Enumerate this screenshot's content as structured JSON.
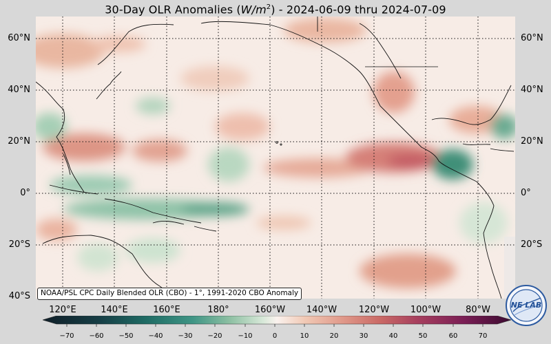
{
  "title": {
    "prefix": "30-Day OLR Anomalies (",
    "var": "W/m",
    "exp": "2",
    "suffix": ") - 2024-06-09 thru 2024-07-09"
  },
  "lat_labels": [
    "60°N",
    "40°N",
    "20°N",
    "0°",
    "20°S",
    "40°S"
  ],
  "lon_labels": [
    "120°E",
    "140°E",
    "160°E",
    "180°",
    "160°W",
    "140°W",
    "120°W",
    "100°W",
    "80°W"
  ],
  "source_note": "NOAA/PSL CPC Daily Blended OLR (CBO) - 1°, 1991-2020 CBO Anomaly",
  "colorbar": {
    "ticks": [
      "−70",
      "−60",
      "−50",
      "−40",
      "−30",
      "−20",
      "−10",
      "0",
      "10",
      "20",
      "30",
      "40",
      "50",
      "60",
      "70"
    ],
    "min": -75,
    "max": 75
  },
  "logo_text": "NE LAB",
  "colors": {
    "negative_strong": "#0f2b32",
    "negative_mid": "#1f7a6a",
    "negative_light": "#c7dfc9",
    "neutral": "#fbf4ef",
    "positive_light": "#efc2aa",
    "positive_mid": "#c8665a",
    "positive_strong": "#5a0f3c"
  }
}
